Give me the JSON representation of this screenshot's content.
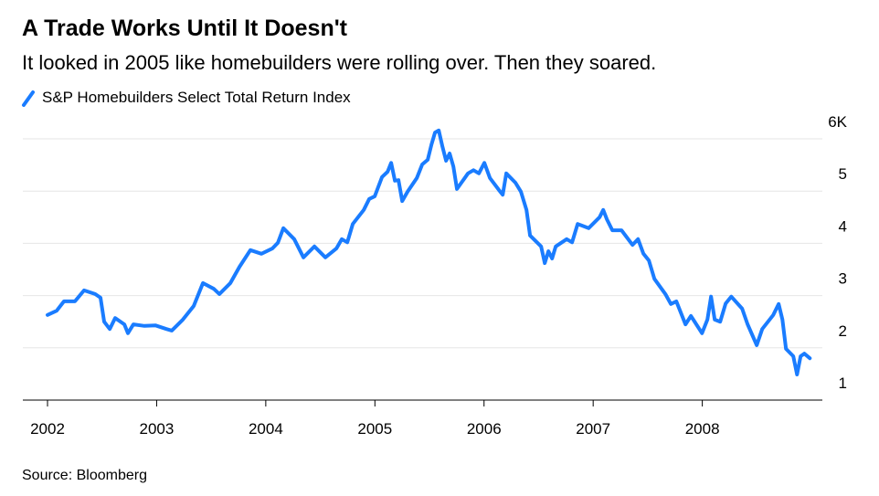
{
  "chart_data": {
    "type": "line",
    "title": "A Trade Works Until It Doesn't",
    "subtitle": "It looked in 2005 like homebuilders were rolling over. Then they soared.",
    "source": "Source: Bloomberg",
    "x": [
      2002.0,
      2002.084,
      2002.151,
      2002.251,
      2002.335,
      2002.436,
      2002.486,
      2002.519,
      2002.57,
      2002.62,
      2002.704,
      2002.737,
      2002.787,
      2002.888,
      2002.988,
      2003.089,
      2003.139,
      2003.24,
      2003.34,
      2003.424,
      2003.524,
      2003.575,
      2003.675,
      2003.759,
      2003.859,
      2003.96,
      2004.06,
      2004.111,
      2004.161,
      2004.261,
      2004.345,
      2004.446,
      2004.546,
      2004.647,
      2004.697,
      2004.747,
      2004.797,
      2004.898,
      2004.948,
      2004.998,
      2005.065,
      2005.116,
      2005.149,
      2005.183,
      2005.216,
      2005.25,
      2005.3,
      2005.384,
      2005.434,
      2005.484,
      2005.518,
      2005.551,
      2005.585,
      2005.618,
      2005.652,
      2005.685,
      2005.719,
      2005.752,
      2005.853,
      2005.903,
      2005.953,
      2006.003,
      2006.054,
      2006.137,
      2006.171,
      2006.204,
      2006.288,
      2006.338,
      2006.389,
      2006.422,
      2006.523,
      2006.556,
      2006.59,
      2006.623,
      2006.657,
      2006.757,
      2006.807,
      2006.858,
      2006.958,
      2007.059,
      2007.092,
      2007.126,
      2007.176,
      2007.26,
      2007.36,
      2007.411,
      2007.461,
      2007.511,
      2007.561,
      2007.662,
      2007.712,
      2007.762,
      2007.846,
      2007.896,
      2007.997,
      2008.047,
      2008.08,
      2008.114,
      2008.164,
      2008.214,
      2008.265,
      2008.365,
      2008.415,
      2008.499,
      2008.549,
      2008.65,
      2008.7,
      2008.734,
      2008.767,
      2008.834,
      2008.868,
      2008.901,
      2008.935,
      2008.985
    ],
    "series": [
      {
        "name": "S&P Homebuilders Select Total Return Index",
        "color": "#1a7cff",
        "values": [
          2.63,
          2.71,
          2.89,
          2.89,
          3.1,
          3.03,
          2.96,
          2.5,
          2.36,
          2.57,
          2.45,
          2.28,
          2.45,
          2.42,
          2.43,
          2.36,
          2.33,
          2.54,
          2.8,
          3.24,
          3.13,
          3.03,
          3.24,
          3.55,
          3.87,
          3.8,
          3.9,
          4.01,
          4.29,
          4.08,
          3.73,
          3.94,
          3.73,
          3.9,
          4.08,
          4.02,
          4.37,
          4.64,
          4.85,
          4.9,
          5.27,
          5.37,
          5.54,
          5.2,
          5.21,
          4.81,
          4.99,
          5.25,
          5.51,
          5.6,
          5.89,
          6.12,
          6.16,
          5.86,
          5.58,
          5.72,
          5.47,
          5.04,
          5.34,
          5.4,
          5.34,
          5.54,
          5.25,
          5.02,
          4.93,
          5.34,
          5.16,
          4.99,
          4.64,
          4.15,
          3.94,
          3.62,
          3.85,
          3.71,
          3.94,
          4.08,
          4.02,
          4.37,
          4.29,
          4.5,
          4.64,
          4.46,
          4.25,
          4.25,
          3.97,
          4.08,
          3.8,
          3.67,
          3.32,
          3.03,
          2.84,
          2.89,
          2.45,
          2.61,
          2.28,
          2.54,
          2.98,
          2.54,
          2.5,
          2.85,
          2.98,
          2.75,
          2.45,
          2.05,
          2.36,
          2.63,
          2.84,
          2.54,
          1.98,
          1.84,
          1.49,
          1.84,
          1.89,
          1.8
        ]
      }
    ],
    "xlim": [
      2001.774,
      2009.1
    ],
    "xticks": [
      2002,
      2003,
      2004,
      2005,
      2006,
      2007,
      2008
    ],
    "ylim": [
      1,
      6
    ],
    "yticks": [
      1,
      2,
      3,
      4,
      5,
      {
        "value": 6,
        "label": "6K"
      }
    ],
    "grid": true
  }
}
